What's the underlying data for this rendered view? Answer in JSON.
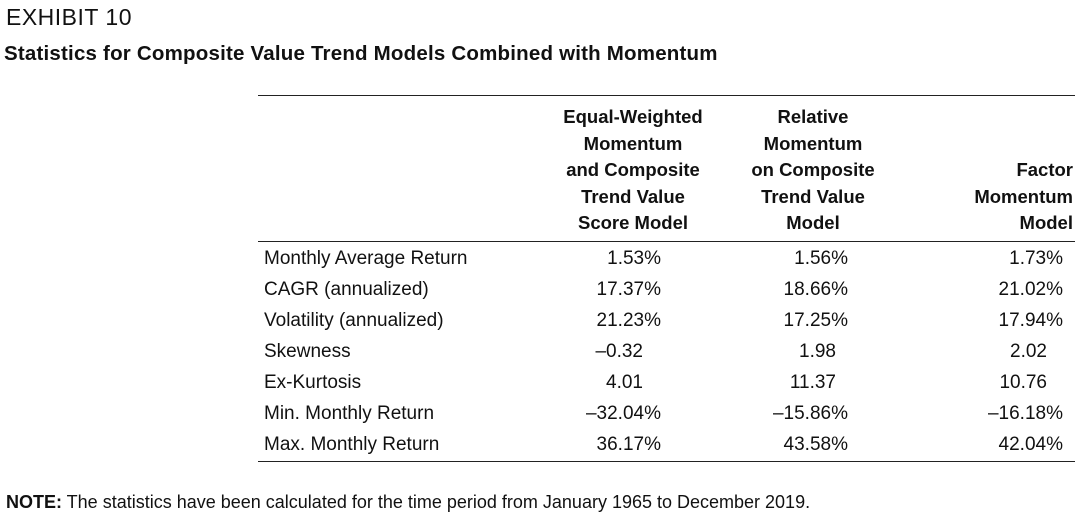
{
  "exhibit_label": "EXHIBIT 10",
  "exhibit_title": "Statistics for Composite Value Trend Models Combined with Momentum",
  "table": {
    "headers": [
      [
        "Equal-Weighted",
        "Momentum",
        "and Composite",
        "Trend Value",
        "Score Model"
      ],
      [
        "Relative",
        "Momentum",
        "on Composite",
        "Trend Value",
        "Model"
      ],
      [
        "Factor",
        "Momentum",
        "Model"
      ]
    ],
    "rows": [
      {
        "label": "Monthly Average Return",
        "values": [
          "1.53%",
          "1.56%",
          "1.73%"
        ]
      },
      {
        "label": "CAGR (annualized)",
        "values": [
          "17.37%",
          "18.66%",
          "21.02%"
        ]
      },
      {
        "label": "Volatility (annualized)",
        "values": [
          "21.23%",
          "17.25%",
          "17.94%"
        ]
      },
      {
        "label": "Skewness",
        "values": [
          "–0.32",
          "1.98",
          "2.02"
        ]
      },
      {
        "label": "Ex-Kurtosis",
        "values": [
          "4.01",
          "11.37",
          "10.76"
        ]
      },
      {
        "label": "Min. Monthly Return",
        "values": [
          "–32.04%",
          "–15.86%",
          "–16.18%"
        ]
      },
      {
        "label": "Max. Monthly Return",
        "values": [
          "36.17%",
          "43.58%",
          "42.04%"
        ]
      }
    ]
  },
  "note": {
    "label": "NOTE:",
    "text": " The statistics have been calculated for the time period from January 1965 to December 2019."
  }
}
